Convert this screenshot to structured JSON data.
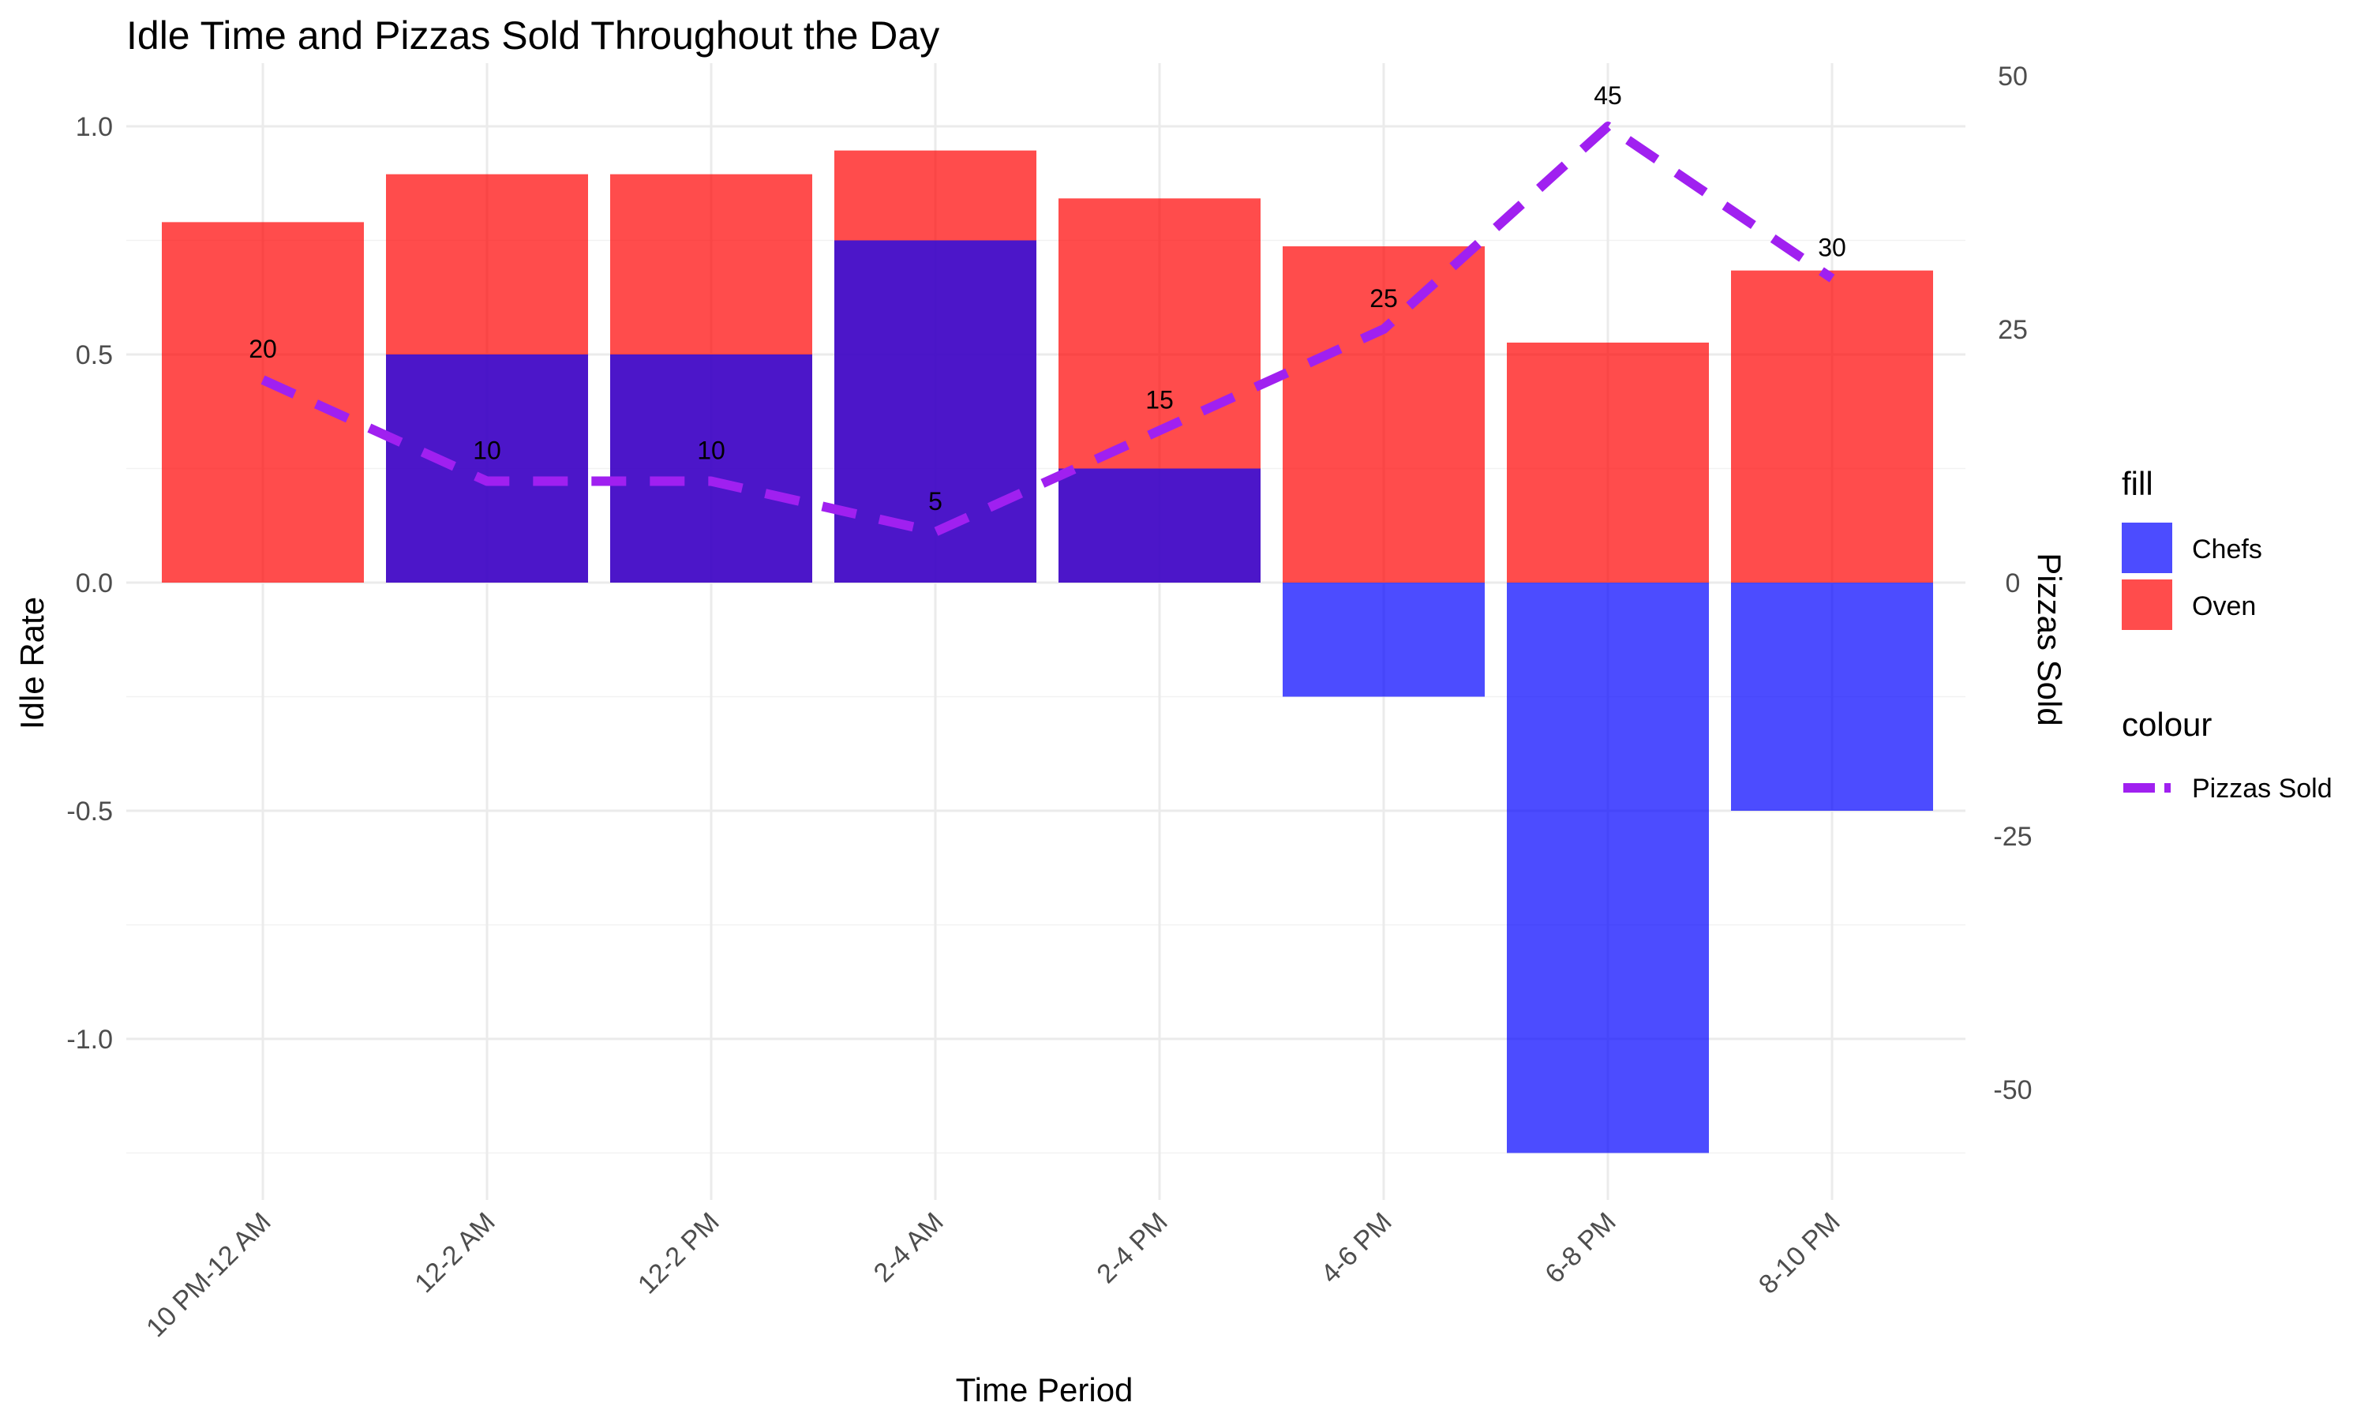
{
  "chart_data": {
    "type": "bar",
    "title": "Idle Time and Pizzas Sold Throughout the Day",
    "xlabel": "Time Period",
    "ylabel": "Idle Rate",
    "y2label": "Pizzas Sold",
    "categories": [
      "10 PM-12 AM",
      "12-2 AM",
      "12-2 PM",
      "2-4 AM",
      "2-4 PM",
      "4-6 PM",
      "6-8 PM",
      "8-10 PM"
    ],
    "series": [
      {
        "name": "Chefs",
        "type": "bar",
        "color": "#0000ff",
        "opacity": 0.7,
        "values": [
          0.0,
          0.5,
          0.5,
          0.75,
          0.25,
          -0.25,
          -1.25,
          -0.5
        ]
      },
      {
        "name": "Oven",
        "type": "bar",
        "color": "#ff0000",
        "opacity": 0.7,
        "values": [
          0.79,
          0.895,
          0.895,
          0.947,
          0.842,
          0.737,
          0.526,
          0.684
        ]
      },
      {
        "name": "Pizzas Sold",
        "type": "line",
        "axis": "right",
        "color": "#a020f0",
        "dashed": true,
        "values": [
          20,
          10,
          10,
          5,
          15,
          25,
          45,
          30
        ]
      }
    ],
    "ylim": [
      -1.35,
      1.12
    ],
    "yticks": [
      "1.0",
      "0.5",
      "0.0",
      "-0.5",
      "-1.0"
    ],
    "y2ticks": [
      "50",
      "25",
      "0",
      "-25",
      "-50"
    ],
    "y2_scale": 45,
    "grid": true,
    "legend": {
      "placement": "right",
      "fill_title": "fill",
      "colour_title": "colour"
    }
  }
}
